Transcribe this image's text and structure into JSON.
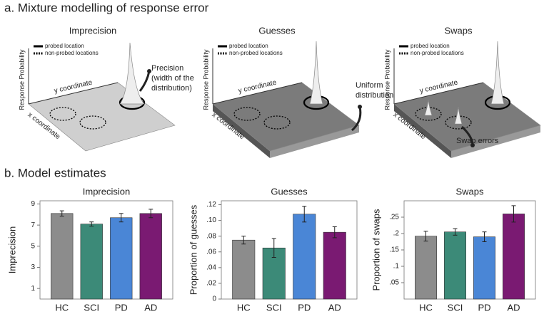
{
  "panel_a": {
    "title": "a. Mixture modelling of response error",
    "panels": [
      {
        "title": "Imprecision",
        "legend": [
          "probed location",
          "non-probed locations"
        ],
        "z_label": "Response Probability",
        "y_label": "y coordinate",
        "x_label": "x coordinate",
        "annotation": [
          "Precision",
          "(width of the",
          "distribution)"
        ]
      },
      {
        "title": "Guesses",
        "legend": [
          "probed location",
          "non-probed locations"
        ],
        "z_label": "Response Probability",
        "y_label": "y coordinate",
        "x_label": "x coordinate",
        "annotation": [
          "Uniform",
          "distribution"
        ]
      },
      {
        "title": "Swaps",
        "legend": [
          "probed location",
          "non-probed locations"
        ],
        "z_label": "Response Probability",
        "y_label": "y coordinate",
        "x_label": "x coordinate",
        "annotation": [
          "Swap errors"
        ]
      }
    ]
  },
  "panel_b_title": "b. Model estimates",
  "chart_data": [
    {
      "type": "bar",
      "title": "Imprecision",
      "y_label": "Imprecision",
      "categories": [
        "HC",
        "SCI",
        "PD",
        "AD"
      ],
      "values": [
        8.1,
        7.1,
        7.7,
        8.1
      ],
      "errors": [
        0.25,
        0.2,
        0.4,
        0.4
      ],
      "colors": [
        "#8c8c8c",
        "#3c8a78",
        "#4a86d6",
        "#7a1a72"
      ],
      "ylim": [
        0,
        9.3
      ],
      "yticks": [
        1,
        3,
        5,
        7,
        9
      ]
    },
    {
      "type": "bar",
      "title": "Guesses",
      "y_label": "Proportion of guesses",
      "categories": [
        "HC",
        "SCI",
        "PD",
        "AD"
      ],
      "values": [
        0.075,
        0.065,
        0.108,
        0.085
      ],
      "errors": [
        0.005,
        0.012,
        0.01,
        0.007
      ],
      "colors": [
        "#8c8c8c",
        "#3c8a78",
        "#4a86d6",
        "#7a1a72"
      ],
      "ylim": [
        0,
        0.125
      ],
      "yticks": [
        0,
        {
          "value": 0.02,
          "label": ".02"
        },
        {
          "value": 0.04,
          "label": ".04"
        },
        {
          "value": 0.06,
          "label": ".06"
        },
        {
          "value": 0.08,
          "label": ".08"
        },
        {
          "value": 0.1,
          "label": ".10"
        },
        {
          "value": 0.12,
          "label": ".12"
        }
      ]
    },
    {
      "type": "bar",
      "title": "Swaps",
      "y_label": "Proportion of swaps",
      "categories": [
        "HC",
        "SCI",
        "PD",
        "AD"
      ],
      "values": [
        0.192,
        0.205,
        0.19,
        0.26
      ],
      "errors": [
        0.015,
        0.01,
        0.015,
        0.025
      ],
      "colors": [
        "#8c8c8c",
        "#3c8a78",
        "#4a86d6",
        "#7a1a72"
      ],
      "ylim": [
        0,
        0.3
      ],
      "yticks": [
        {
          "value": 0.05,
          "label": ".05"
        },
        {
          "value": 0.1,
          "label": ".1"
        },
        {
          "value": 0.15,
          "label": ".15"
        },
        {
          "value": 0.2,
          "label": ".2"
        },
        {
          "value": 0.25,
          "label": ".25"
        }
      ]
    }
  ]
}
